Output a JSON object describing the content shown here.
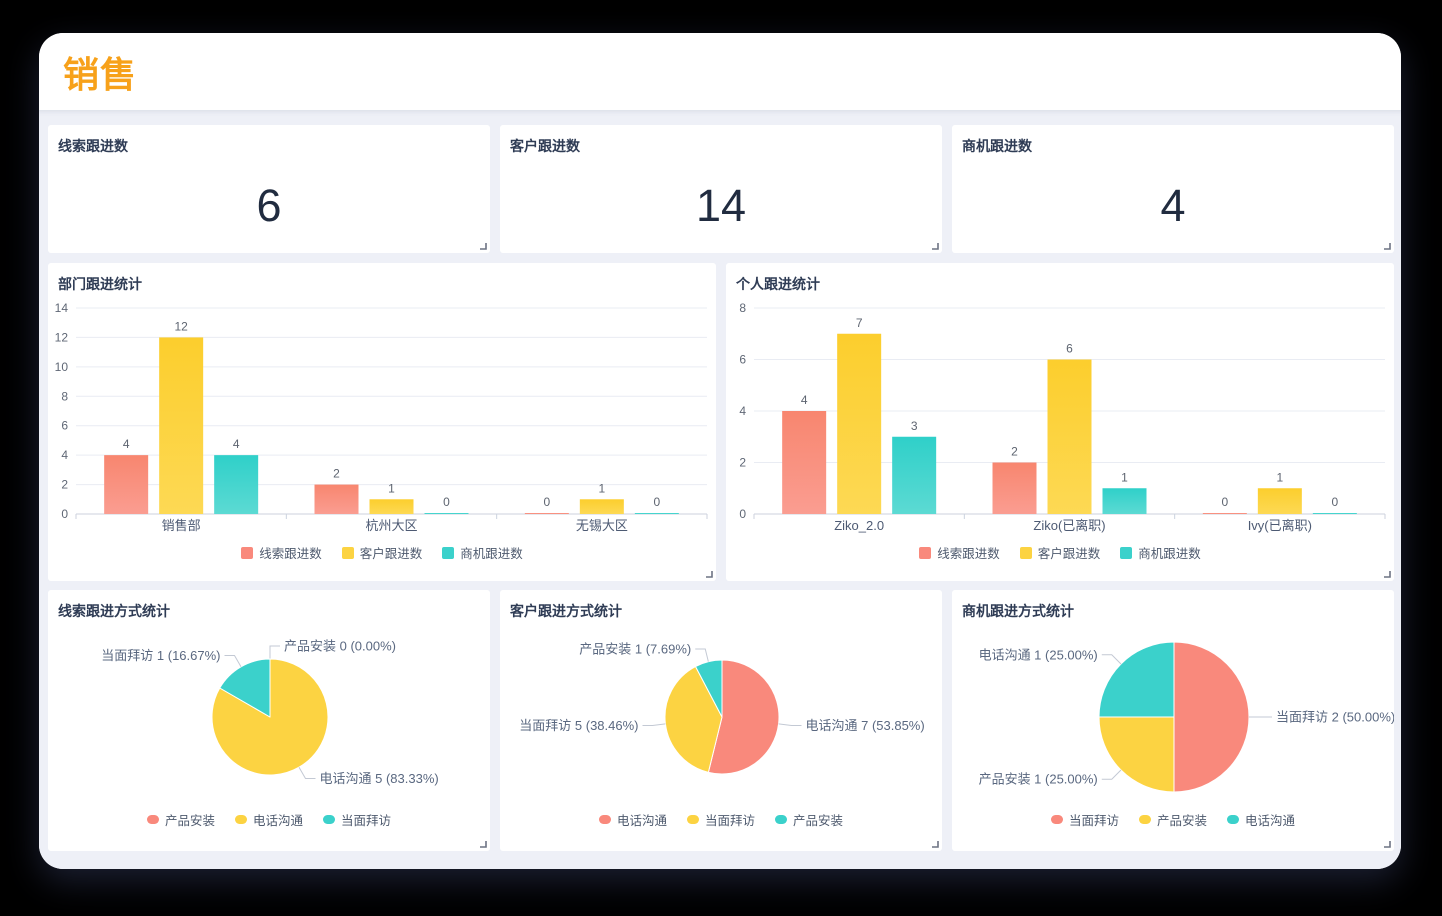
{
  "page": {
    "title": "销售",
    "accent_color": "#f7a11a",
    "page_bg": "#000000",
    "panel_bg": "#ffffff",
    "body_bg": "#eef0f7"
  },
  "palette": [
    "#f9897c",
    "#fcd342",
    "#3bd1cb"
  ],
  "palette_gradients": [
    [
      "#f8866f",
      "#fa9d91"
    ],
    [
      "#fcce2d",
      "#fdd954"
    ],
    [
      "#2fd0c9",
      "#5cdad3"
    ]
  ],
  "kpis": [
    {
      "label": "线索跟进数",
      "value": "6"
    },
    {
      "label": "客户跟进数",
      "value": "14"
    },
    {
      "label": "商机跟进数",
      "value": "4"
    }
  ],
  "chart_data": [
    {
      "type": "bar",
      "title": "部门跟进统计",
      "categories": [
        "销售部",
        "杭州大区",
        "无锡大区"
      ],
      "series": [
        {
          "name": "线索跟进数",
          "values": [
            4,
            2,
            0
          ]
        },
        {
          "name": "客户跟进数",
          "values": [
            12,
            1,
            1
          ]
        },
        {
          "name": "商机跟进数",
          "values": [
            4,
            0,
            0
          ]
        }
      ],
      "ylim": [
        0,
        14
      ],
      "ystep": 2,
      "grid": true,
      "legend_position": "bottom",
      "value_labels": true
    },
    {
      "type": "bar",
      "title": "个人跟进统计",
      "categories": [
        "Ziko_2.0",
        "Ziko(已离职)",
        "Ivy(已离职)"
      ],
      "series": [
        {
          "name": "线索跟进数",
          "values": [
            4,
            2,
            0
          ]
        },
        {
          "name": "客户跟进数",
          "values": [
            7,
            6,
            1
          ]
        },
        {
          "name": "商机跟进数",
          "values": [
            3,
            1,
            0
          ]
        }
      ],
      "ylim": [
        0,
        8
      ],
      "ystep": 2,
      "grid": true,
      "legend_position": "bottom",
      "value_labels": true
    },
    {
      "type": "pie",
      "title": "线索跟进方式统计",
      "slices": [
        {
          "name": "产品安装",
          "value": 0,
          "pct": "0.00%"
        },
        {
          "name": "电话沟通",
          "value": 5,
          "pct": "83.33%"
        },
        {
          "name": "当面拜访",
          "value": 1,
          "pct": "16.67%"
        }
      ],
      "radius": 58,
      "legend_position": "bottom"
    },
    {
      "type": "pie",
      "title": "客户跟进方式统计",
      "slices": [
        {
          "name": "电话沟通",
          "value": 7,
          "pct": "53.85%"
        },
        {
          "name": "当面拜访",
          "value": 5,
          "pct": "38.46%"
        },
        {
          "name": "产品安装",
          "value": 1,
          "pct": "7.69%"
        }
      ],
      "radius": 57,
      "legend_position": "bottom"
    },
    {
      "type": "pie",
      "title": "商机跟进方式统计",
      "slices": [
        {
          "name": "当面拜访",
          "value": 2,
          "pct": "50.00%"
        },
        {
          "name": "产品安装",
          "value": 1,
          "pct": "25.00%"
        },
        {
          "name": "电话沟通",
          "value": 1,
          "pct": "25.00%"
        }
      ],
      "radius": 75,
      "legend_position": "bottom"
    }
  ]
}
